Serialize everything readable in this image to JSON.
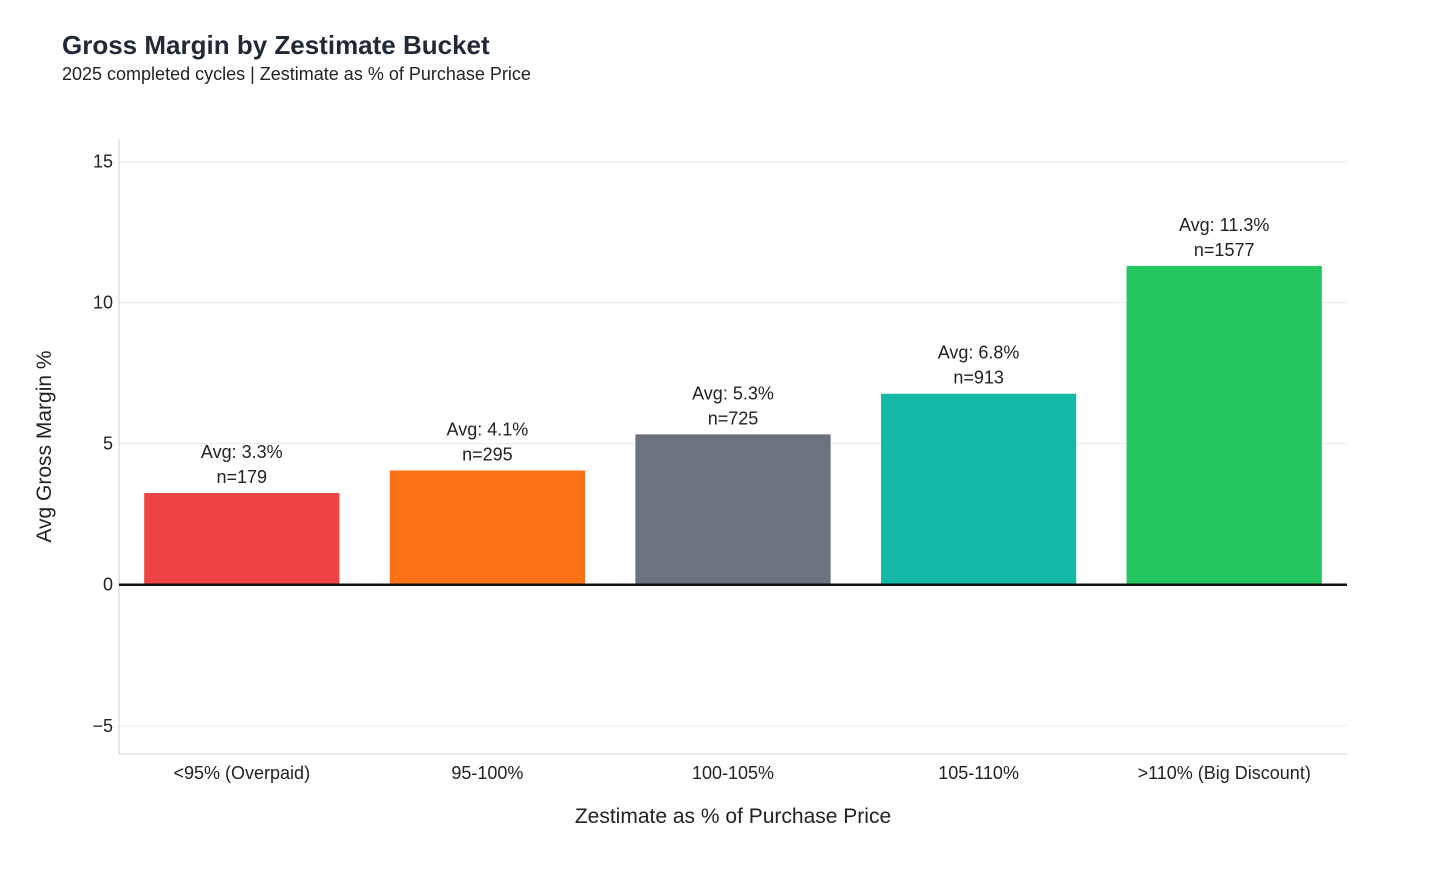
{
  "chart_data": {
    "type": "bar",
    "title": "Gross Margin by Zestimate Bucket",
    "subtitle": "2025 completed cycles | Zestimate as % of Purchase Price",
    "xlabel": "Zestimate as % of Purchase Price",
    "ylabel": "Avg Gross Margin %",
    "ylim": [
      -6,
      15.8
    ],
    "yticks": [
      -5,
      0,
      5,
      10,
      15
    ],
    "ytick_labels": [
      "−5",
      "0",
      "5",
      "10",
      "15"
    ],
    "grid": true,
    "categories": [
      "<95% (Overpaid)",
      "95-100%",
      "100-105%",
      "105-110%",
      ">110% (Big Discount)"
    ],
    "values": [
      3.25,
      4.05,
      5.33,
      6.77,
      11.3
    ],
    "data_labels_avg": [
      "Avg: 3.3%",
      "Avg: 4.1%",
      "Avg: 5.3%",
      "Avg: 6.8%",
      "Avg: 11.3%"
    ],
    "data_labels_n": [
      "n=179",
      "n=295",
      "n=725",
      "n=913",
      "n=1577"
    ],
    "colors": [
      "#ef4444",
      "#f97316",
      "#6b7280",
      "#14b8a6",
      "#22c55e"
    ]
  }
}
